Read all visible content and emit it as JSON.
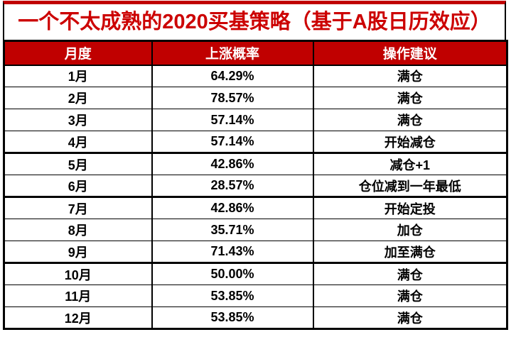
{
  "title": "一个不太成熟的2020买基策略（基于A股日历效应）",
  "colors": {
    "accent_red": "#C00000",
    "title_red": "#CC0000",
    "border_black": "#000000",
    "background": "#FFFFFF"
  },
  "table": {
    "headers": [
      "月度",
      "上涨概率",
      "操作建议"
    ],
    "rows": [
      {
        "month": "1月",
        "probability": "64.29%",
        "advice": "满仓"
      },
      {
        "month": "2月",
        "probability": "78.57%",
        "advice": "满仓"
      },
      {
        "month": "3月",
        "probability": "57.14%",
        "advice": "满仓"
      },
      {
        "month": "4月",
        "probability": "57.14%",
        "advice": "开始减仓"
      },
      {
        "month": "5月",
        "probability": "42.86%",
        "advice": "减仓+1"
      },
      {
        "month": "6月",
        "probability": "28.57%",
        "advice": "仓位减到一年最低"
      },
      {
        "month": "7月",
        "probability": "42.86%",
        "advice": "开始定投"
      },
      {
        "month": "8月",
        "probability": "35.71%",
        "advice": "加仓"
      },
      {
        "month": "9月",
        "probability": "71.43%",
        "advice": "加至满仓"
      },
      {
        "month": "10月",
        "probability": "50.00%",
        "advice": "满仓"
      },
      {
        "month": "11月",
        "probability": "53.85%",
        "advice": "满仓"
      },
      {
        "month": "12月",
        "probability": "53.85%",
        "advice": "满仓"
      }
    ]
  },
  "chart_data": {
    "type": "table",
    "title": "一个不太成熟的2020买基策略（基于A股日历效应）",
    "columns": [
      "月度",
      "上涨概率",
      "操作建议"
    ],
    "rows": [
      [
        "1月",
        "64.29%",
        "满仓"
      ],
      [
        "2月",
        "78.57%",
        "满仓"
      ],
      [
        "3月",
        "57.14%",
        "满仓"
      ],
      [
        "4月",
        "57.14%",
        "开始减仓"
      ],
      [
        "5月",
        "42.86%",
        "减仓+1"
      ],
      [
        "6月",
        "28.57%",
        "仓位减到一年最低"
      ],
      [
        "7月",
        "42.86%",
        "开始定投"
      ],
      [
        "8月",
        "35.71%",
        "加仓"
      ],
      [
        "9月",
        "71.43%",
        "加至满仓"
      ],
      [
        "10月",
        "50.00%",
        "满仓"
      ],
      [
        "11月",
        "53.85%",
        "满仓"
      ],
      [
        "12月",
        "53.85%",
        "满仓"
      ]
    ],
    "probability_values_pct": [
      64.29,
      78.57,
      57.14,
      57.14,
      42.86,
      28.57,
      42.86,
      35.71,
      71.43,
      50.0,
      53.85,
      53.85
    ],
    "layout_hints": {
      "header_background": "#C00000",
      "thick_divider_after_rows": [
        "4月",
        "6月",
        "9月"
      ],
      "grid": true,
      "legend": "none"
    }
  }
}
